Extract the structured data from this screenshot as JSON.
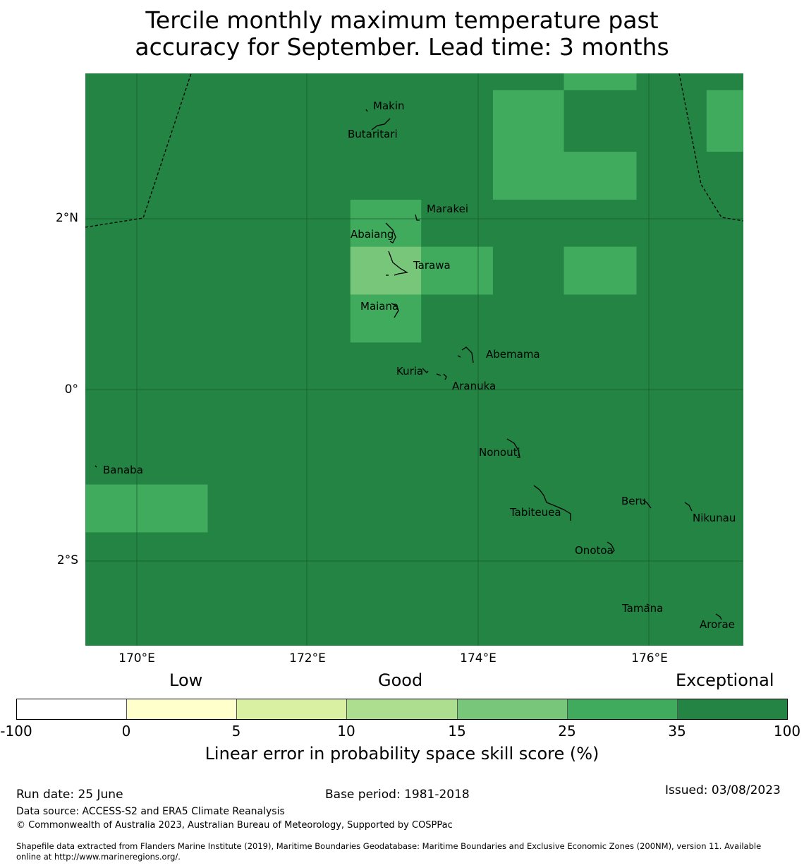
{
  "title_line1": "Tercile monthly maximum temperature past",
  "title_line2": "accuracy for September. Lead time: 3 months",
  "map": {
    "background_color": "#238443",
    "lat_labels": [
      "2°N",
      "0°",
      "2°S"
    ],
    "lon_labels": [
      "170°E",
      "172°E",
      "174°E",
      "176°E"
    ],
    "cells": [
      {
        "lon_range": [
          175.0,
          175.85
        ],
        "lat_range": [
          3.5,
          3.88
        ],
        "value_class": "25-35",
        "color": "#41ab5d"
      },
      {
        "lon_range": [
          174.17,
          175.0
        ],
        "lat_range": [
          2.22,
          3.5
        ],
        "value_class": "25-35",
        "color": "#41ab5d"
      },
      {
        "lon_range": [
          175.0,
          175.85
        ],
        "lat_range": [
          2.22,
          2.78
        ],
        "value_class": "25-35",
        "color": "#41ab5d"
      },
      {
        "lon_range": [
          176.67,
          177.1
        ],
        "lat_range": [
          2.78,
          3.5
        ],
        "value_class": "25-35",
        "color": "#41ab5d"
      },
      {
        "lon_range": [
          172.5,
          173.33
        ],
        "lat_range": [
          1.67,
          2.22
        ],
        "value_class": "25-35",
        "color": "#41ab5d"
      },
      {
        "lon_range": [
          172.5,
          173.33
        ],
        "lat_range": [
          1.11,
          1.67
        ],
        "value_class": "15-25",
        "color": "#78c679"
      },
      {
        "lon_range": [
          173.33,
          174.17
        ],
        "lat_range": [
          1.11,
          1.67
        ],
        "value_class": "25-35",
        "color": "#41ab5d"
      },
      {
        "lon_range": [
          172.5,
          173.33
        ],
        "lat_range": [
          0.55,
          1.11
        ],
        "value_class": "25-35",
        "color": "#41ab5d"
      },
      {
        "lon_range": [
          175.0,
          175.85
        ],
        "lat_range": [
          1.11,
          1.67
        ],
        "value_class": "25-35",
        "color": "#41ab5d"
      },
      {
        "lon_range": [
          169.4,
          170.83
        ],
        "lat_range": [
          -1.67,
          -1.11
        ],
        "value_class": "25-35",
        "color": "#41ab5d"
      }
    ],
    "islands": [
      "Makin",
      "Butaritari",
      "Marakei",
      "Abaiang",
      "Tarawa",
      "Maiana",
      "Abemama",
      "Kuria",
      "Aranuka",
      "Nonouti",
      "Banaba",
      "Tabiteuea",
      "Beru",
      "Nikunau",
      "Onotoa",
      "Tamana",
      "Arorae"
    ]
  },
  "colorbar": {
    "categories": [
      "Low",
      "Good",
      "Exceptional"
    ],
    "colors": [
      "#ffffff",
      "#ffffcc",
      "#d9f0a3",
      "#addd8e",
      "#78c679",
      "#41ab5d",
      "#238443"
    ],
    "ticks": [
      "-100",
      "0",
      "5",
      "10",
      "15",
      "25",
      "35",
      "100"
    ],
    "label": "Linear error in probability space skill score (%)"
  },
  "footer": {
    "run_date": "Run date: 25 June",
    "base_period": "Base period: 1981-2018",
    "issued": "Issued: 03/08/2023",
    "data_source": "Data source: ACCESS-S2 and ERA5 Climate Reanalysis",
    "copyright": "© Commonwealth of Australia 2023, Australian Bureau of Meteorology, Supported by COSPPac",
    "shapefile_line1": "Shapefile data extracted from Flanders Marine Institute (2019), Maritime Boundaries Geodatabase: Maritime Boundaries and Exclusive Economic Zones (200NM), version 11. Available",
    "shapefile_line2": "online at http://www.marineregions.org/."
  }
}
